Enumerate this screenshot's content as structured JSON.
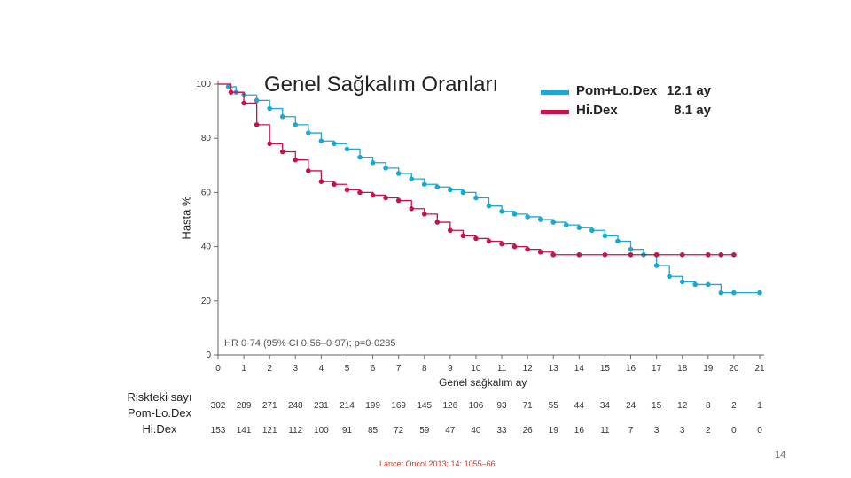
{
  "chart_data": {
    "type": "line",
    "title": "Genel Sağkalım Oranları",
    "xlabel": "Genel sağkalım ay",
    "ylabel": "Hasta %",
    "xlim": [
      0,
      21
    ],
    "ylim": [
      0,
      100
    ],
    "x_ticks": [
      "0",
      "1",
      "2",
      "3",
      "4",
      "5",
      "6",
      "7",
      "8",
      "9",
      "10",
      "11",
      "12",
      "13",
      "14",
      "15",
      "16",
      "17",
      "18",
      "19",
      "20",
      "21"
    ],
    "y_ticks": [
      "0",
      "20",
      "40",
      "60",
      "80",
      "100"
    ],
    "legend": [
      {
        "name": "Pom+Lo.Dex",
        "median": "12.1 ay",
        "color": "#1ca6d2"
      },
      {
        "name": "Hi.Dex",
        "median": "8.1 ay",
        "color": "#c8124a"
      }
    ],
    "annotation": "HR 0·74 (95% CI 0·56–0·97); p=0·0285",
    "series": [
      {
        "name": "Pom+Lo.Dex",
        "color": "#1ca6d2",
        "x": [
          0,
          0.4,
          0.7,
          1.0,
          1.5,
          2.0,
          2.5,
          3.0,
          3.5,
          4.0,
          4.5,
          5.0,
          5.5,
          6.0,
          6.5,
          7.0,
          7.5,
          8.0,
          8.5,
          9.0,
          9.5,
          10.0,
          10.5,
          11.0,
          11.5,
          12.0,
          12.5,
          13.0,
          13.5,
          14.0,
          14.5,
          15.0,
          15.5,
          16.0,
          16.5,
          17.0,
          17.5,
          18.0,
          18.5,
          19.0,
          19.5,
          20.0,
          21.0
        ],
        "y": [
          100,
          99,
          97,
          96,
          94,
          91,
          88,
          85,
          82,
          79,
          78,
          76,
          73,
          71,
          69,
          67,
          65,
          63,
          62,
          61,
          60,
          58,
          55,
          53,
          52,
          51,
          50,
          49,
          48,
          47,
          46,
          44,
          42,
          39,
          37,
          33,
          29,
          27,
          26,
          26,
          23,
          23,
          23
        ]
      },
      {
        "name": "Hi.Dex",
        "color": "#c8124a",
        "x": [
          0,
          0.5,
          1.0,
          1.5,
          2.0,
          2.5,
          3.0,
          3.5,
          4.0,
          4.5,
          5.0,
          5.5,
          6.0,
          6.5,
          7.0,
          7.5,
          8.0,
          8.5,
          9.0,
          9.5,
          10.0,
          10.5,
          11.0,
          11.5,
          12.0,
          12.5,
          13.0,
          14.0,
          15.0,
          16.0,
          17.0,
          18.0,
          19.0,
          19.5,
          20.0
        ],
        "y": [
          100,
          97,
          93,
          85,
          78,
          75,
          72,
          68,
          64,
          63,
          61,
          60,
          59,
          58,
          57,
          54,
          52,
          49,
          46,
          44,
          43,
          42,
          41,
          40,
          39,
          38,
          37,
          37,
          37,
          37,
          37,
          37,
          37,
          37,
          37
        ]
      }
    ]
  },
  "risk_table": {
    "label_title": "Riskteki sayı",
    "rows": [
      {
        "name": "Pom-Lo.Dex",
        "values": [
          "302",
          "289",
          "271",
          "248",
          "231",
          "214",
          "199",
          "169",
          "145",
          "126",
          "106",
          "93",
          "71",
          "55",
          "44",
          "34",
          "24",
          "15",
          "12",
          "8",
          "2",
          "1"
        ]
      },
      {
        "name": "Hi.Dex",
        "values": [
          "153",
          "141",
          "121",
          "112",
          "100",
          "91",
          "85",
          "72",
          "59",
          "47",
          "40",
          "33",
          "26",
          "19",
          "16",
          "11",
          "7",
          "3",
          "3",
          "2",
          "0",
          "0"
        ]
      }
    ]
  },
  "citation": "Lancet Oncol 2013; 14: 1055–66",
  "page_number": "14"
}
